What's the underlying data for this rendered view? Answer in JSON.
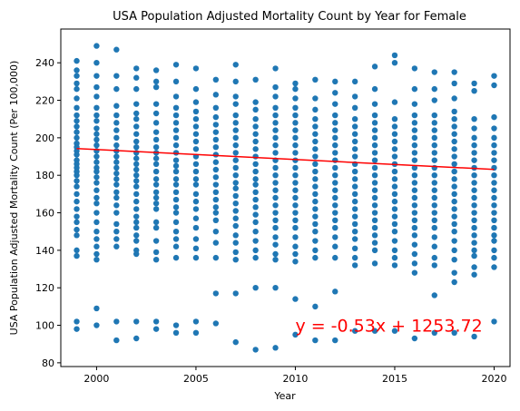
{
  "chart_data": {
    "type": "scatter",
    "title": "USA Population Adjusted Mortality Count by Year for Female",
    "xlabel": "Year",
    "ylabel": "USA Population Adjusted Mortality Count (Per 100,000)",
    "xlim": [
      1998.2,
      2020.8
    ],
    "ylim": [
      78,
      258
    ],
    "xticks": [
      2000,
      2005,
      2010,
      2015,
      2020
    ],
    "yticks": [
      80,
      100,
      120,
      140,
      160,
      180,
      200,
      220,
      240
    ],
    "grid": false,
    "point_color": "#1f77b4",
    "series": [
      {
        "points_by_year": [
          {
            "year": 1999,
            "values": [
              241,
              236,
              233,
              229,
              226,
              221,
              216,
              212,
              209,
              206,
              203,
              200,
              197,
              195,
              193,
              191,
              188,
              186,
              184,
              182,
              180,
              177,
              174,
              170,
              166,
              162,
              158,
              155,
              151,
              148,
              140,
              137,
              102,
              98
            ]
          },
          {
            "year": 2000,
            "values": [
              249,
              240,
              233,
              227,
              222,
              216,
              212,
              209,
              205,
              202,
              199,
              196,
              193,
              190,
              187,
              184,
              182,
              179,
              176,
              172,
              168,
              165,
              160,
              155,
              150,
              146,
              142,
              138,
              135,
              109,
              100
            ]
          },
          {
            "year": 2001,
            "values": [
              247,
              233,
              226,
              217,
              212,
              208,
              204,
              200,
              196,
              193,
              190,
              187,
              184,
              181,
              178,
              175,
              171,
              168,
              164,
              160,
              154,
              150,
              146,
              142,
              102,
              92
            ]
          },
          {
            "year": 2002,
            "values": [
              237,
              232,
              226,
              218,
              213,
              210,
              206,
              202,
              198,
              195,
              192,
              189,
              186,
              183,
              180,
              177,
              174,
              170,
              166,
              162,
              158,
              155,
              152,
              148,
              145,
              140,
              138,
              102,
              93
            ]
          },
          {
            "year": 2003,
            "values": [
              236,
              230,
              227,
              218,
              213,
              208,
              203,
              199,
              195,
              192,
              189,
              186,
              182,
              178,
              175,
              171,
              168,
              165,
              162,
              155,
              152,
              145,
              139,
              135,
              102,
              98
            ]
          },
          {
            "year": 2004,
            "values": [
              239,
              230,
              222,
              216,
              212,
              208,
              204,
              200,
              196,
              192,
              188,
              185,
              182,
              178,
              175,
              171,
              167,
              163,
              160,
              155,
              150,
              146,
              142,
              136,
              100,
              96
            ]
          },
          {
            "year": 2005,
            "values": [
              237,
              226,
              219,
              214,
              210,
              206,
              202,
              198,
              194,
              190,
              186,
              182,
              178,
              175,
              170,
              166,
              162,
              157,
              152,
              146,
              141,
              136,
              102,
              96
            ]
          },
          {
            "year": 2006,
            "values": [
              231,
              223,
              216,
              211,
              207,
              203,
              199,
              195,
              191,
              187,
              183,
              179,
              175,
              171,
              167,
              163,
              160,
              156,
              150,
              144,
              136,
              117,
              101
            ]
          },
          {
            "year": 2007,
            "values": [
              239,
              230,
              222,
              218,
              212,
              208,
              204,
              200,
              196,
              192,
              188,
              184,
              180,
              176,
              173,
              169,
              165,
              161,
              157,
              153,
              148,
              144,
              139,
              135,
              117,
              91
            ]
          },
          {
            "year": 2008,
            "values": [
              231,
              219,
              215,
              210,
              206,
              202,
              198,
              194,
              190,
              186,
              182,
              178,
              175,
              171,
              167,
              163,
              159,
              155,
              150,
              145,
              140,
              136,
              120,
              87
            ]
          },
          {
            "year": 2009,
            "values": [
              237,
              227,
              222,
              216,
              212,
              208,
              204,
              200,
              196,
              192,
              188,
              184,
              180,
              176,
              172,
              168,
              164,
              160,
              156,
              152,
              147,
              143,
              138,
              135,
              120,
              88
            ]
          },
          {
            "year": 2010,
            "values": [
              229,
              226,
              221,
              216,
              212,
              208,
              204,
              200,
              196,
              192,
              188,
              184,
              180,
              176,
              172,
              168,
              164,
              160,
              156,
              152,
              147,
              142,
              138,
              134,
              114,
              95
            ]
          },
          {
            "year": 2011,
            "values": [
              231,
              221,
              215,
              210,
              206,
              202,
              198,
              194,
              190,
              186,
              182,
              178,
              174,
              170,
              166,
              162,
              158,
              154,
              150,
              145,
              140,
              136,
              110,
              92
            ]
          },
          {
            "year": 2012,
            "values": [
              230,
              224,
              218,
              212,
              208,
              204,
              200,
              196,
              192,
              188,
              184,
              180,
              176,
              172,
              168,
              164,
              160,
              156,
              152,
              147,
              142,
              136,
              118,
              92
            ]
          },
          {
            "year": 2013,
            "values": [
              230,
              222,
              216,
              210,
              206,
              202,
              198,
              194,
              190,
              186,
              182,
              178,
              174,
              170,
              166,
              162,
              158,
              154,
              150,
              146,
              141,
              136,
              132,
              97
            ]
          },
          {
            "year": 2014,
            "values": [
              238,
              226,
              218,
              212,
              208,
              204,
              200,
              196,
              192,
              188,
              184,
              180,
              176,
              172,
              168,
              164,
              160,
              156,
              152,
              148,
              144,
              140,
              133,
              97
            ]
          },
          {
            "year": 2015,
            "values": [
              244,
              240,
              219,
              210,
              206,
              202,
              198,
              194,
              190,
              186,
              182,
              178,
              174,
              170,
              166,
              162,
              158,
              154,
              150,
              145,
              140,
              136,
              132,
              97
            ]
          },
          {
            "year": 2016,
            "values": [
              237,
              226,
              218,
              212,
              208,
              204,
              200,
              196,
              192,
              188,
              184,
              180,
              176,
              172,
              168,
              164,
              160,
              156,
              152,
              148,
              143,
              138,
              133,
              128,
              93
            ]
          },
          {
            "year": 2017,
            "values": [
              235,
              226,
              220,
              212,
              208,
              204,
              200,
              196,
              192,
              188,
              184,
              180,
              176,
              172,
              168,
              164,
              160,
              156,
              152,
              147,
              142,
              136,
              132,
              116,
              96
            ]
          },
          {
            "year": 2018,
            "values": [
              235,
              229,
              221,
              214,
              210,
              206,
              202,
              198,
              194,
              190,
              186,
              182,
              178,
              174,
              170,
              166,
              162,
              158,
              154,
              150,
              145,
              140,
              135,
              128,
              123,
              96
            ]
          },
          {
            "year": 2019,
            "values": [
              229,
              225,
              210,
              205,
              200,
              196,
              192,
              188,
              184,
              180,
              176,
              172,
              168,
              164,
              160,
              156,
              152,
              148,
              144,
              140,
              137,
              131,
              127,
              94
            ]
          },
          {
            "year": 2020,
            "values": [
              233,
              228,
              211,
              205,
              200,
              196,
              192,
              188,
              184,
              180,
              176,
              172,
              168,
              164,
              160,
              156,
              152,
              148,
              145,
              140,
              136,
              131,
              102
            ]
          }
        ]
      }
    ],
    "regression": {
      "slope": -0.53,
      "intercept": 1253.72,
      "x_start": 1999,
      "x_end": 2020,
      "color": "#ff0000",
      "equation_text": "y = -0.53x + 1253.72",
      "equation_anchor": [
        2010,
        100
      ],
      "equation_color": "#ff0000"
    }
  }
}
